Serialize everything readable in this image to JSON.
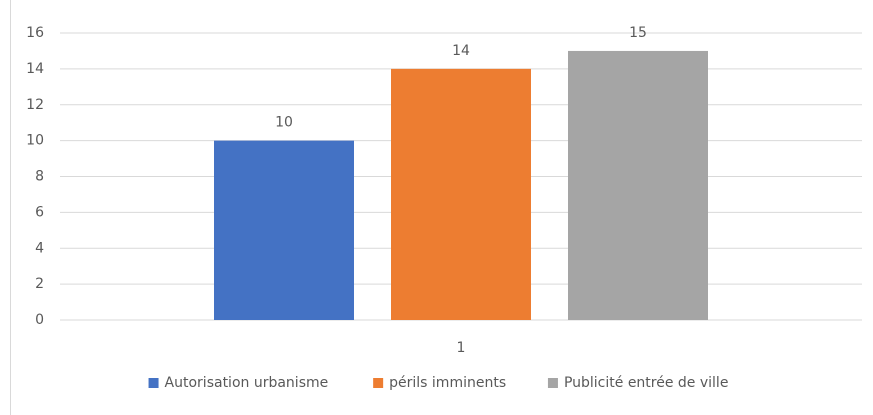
{
  "chart_data": {
    "type": "bar",
    "categories": [
      "1"
    ],
    "series": [
      {
        "name": "Autorisation urbanisme",
        "color": "#4472c4",
        "values": [
          10
        ]
      },
      {
        "name": "périls imminents",
        "color": "#ed7d31",
        "values": [
          14
        ]
      },
      {
        "name": "Publicité entrée de ville",
        "color": "#a5a5a5",
        "values": [
          15
        ]
      }
    ],
    "ylim": [
      0,
      16
    ],
    "yticks": [
      0,
      2,
      4,
      6,
      8,
      10,
      12,
      14,
      16
    ],
    "grid": true,
    "legend": "bottom",
    "data_labels": true
  }
}
